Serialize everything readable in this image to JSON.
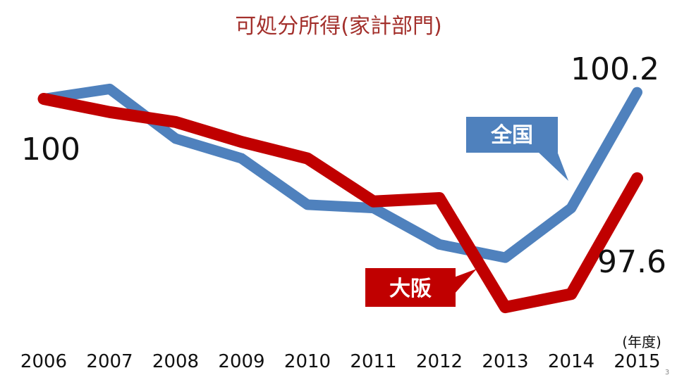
{
  "slide": {
    "page_number": "3"
  },
  "chart_data": {
    "type": "line",
    "title": "可処分所得(家計部門)",
    "x_unit": "(年度)",
    "categories": [
      "2006",
      "2007",
      "2008",
      "2009",
      "2010",
      "2011",
      "2012",
      "2013",
      "2014",
      "2015"
    ],
    "ylim": [
      93.5,
      101.5
    ],
    "grid": false,
    "legend": "callouts",
    "series": [
      {
        "name": "全国",
        "color": "#4f81bd",
        "values": [
          100,
          100.3,
          98.8,
          98.2,
          96.8,
          96.7,
          95.6,
          95.2,
          96.7,
          100.2
        ]
      },
      {
        "name": "大阪",
        "color": "#c00000",
        "values": [
          100,
          99.6,
          99.3,
          98.7,
          98.2,
          96.9,
          97.0,
          93.7,
          94.1,
          97.6
        ]
      }
    ],
    "annotations": {
      "start_label": "100",
      "end_label_all": "100.2",
      "end_label_osaka": "97.6"
    }
  }
}
